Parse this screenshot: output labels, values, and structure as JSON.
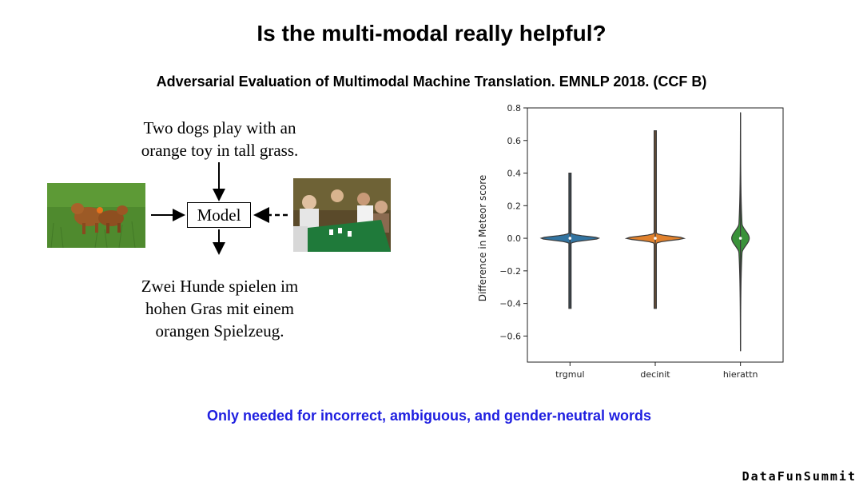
{
  "slide": {
    "title": "Is the multi-modal really helpful?",
    "subtitle": "Adversarial Evaluation of Multimodal Machine Translation. EMNLP 2018. (CCF B)",
    "bottom_note": "Only needed for incorrect, ambiguous, and gender-neutral words",
    "brand": "DataFunSummit"
  },
  "diagram": {
    "source_lines": [
      "Two dogs play with an",
      "orange toy in tall grass."
    ],
    "model_label": "Model",
    "target_lines": [
      "Zwei Hunde spielen im",
      "hohen Gras mit einem",
      "orangen Spielzeug."
    ]
  },
  "chart_data": {
    "type": "violin",
    "categories": [
      "trgmul",
      "decinit",
      "hierattn"
    ],
    "ylabel": "Difference in Meteor score",
    "xlabel": "",
    "ylim": [
      -0.76,
      0.8
    ],
    "yticks": [
      -0.6,
      -0.4,
      -0.2,
      0.0,
      0.2,
      0.4,
      0.6,
      0.8
    ],
    "ytick_labels": [
      "−0.6",
      "−0.4",
      "−0.2",
      "0.0",
      "0.2",
      "0.4",
      "0.6",
      "0.8"
    ],
    "series": [
      {
        "category": "trgmul",
        "min": -0.43,
        "max": 0.4,
        "median": 0.0,
        "color": "#3274a1"
      },
      {
        "category": "decinit",
        "min": -0.43,
        "max": 0.66,
        "median": 0.0,
        "color": "#e1812c"
      },
      {
        "category": "hierattn",
        "min": -0.69,
        "max": 0.77,
        "median": 0.0,
        "color": "#3a923a"
      }
    ],
    "grid": false
  }
}
